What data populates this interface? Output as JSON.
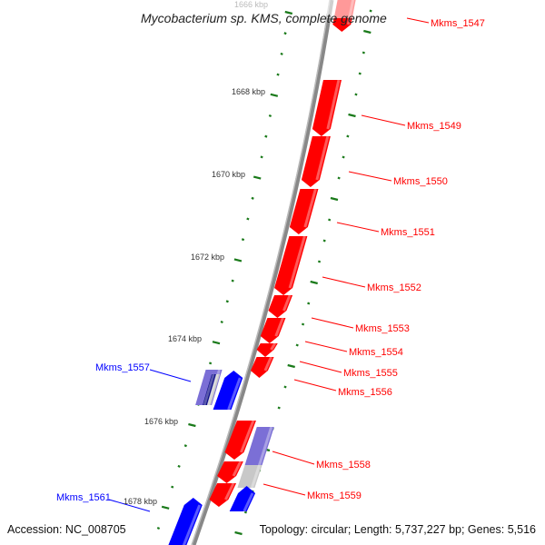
{
  "title": "Mycobacterium sp. KMS, complete genome",
  "footer": {
    "accession": "Accession: NC_008705",
    "summary": "Topology: circular; Length: 5,737,227 bp; Genes: 5,516"
  },
  "ruler": [
    "1666 kbp",
    "1668 kbp",
    "1670 kbp",
    "1672 kbp",
    "1674 kbp",
    "1676 kbp",
    "1678 kbp"
  ],
  "genes_forward": [
    "Mkms_1547",
    "Mkms_1549",
    "Mkms_1550",
    "Mkms_1551",
    "Mkms_1552",
    "Mkms_1553",
    "Mkms_1554",
    "Mkms_1555",
    "Mkms_1556",
    "Mkms_1558",
    "Mkms_1559"
  ],
  "genes_reverse": [
    "Mkms_1557",
    "Mkms_1561"
  ],
  "colors": {
    "forward": "#ff0000",
    "reverse": "#0000ff",
    "cog_purple": "#7b6fd6",
    "cog_gray": "#c8c8c8",
    "ticks": "#1a7a1a",
    "backbone": "#888888"
  }
}
